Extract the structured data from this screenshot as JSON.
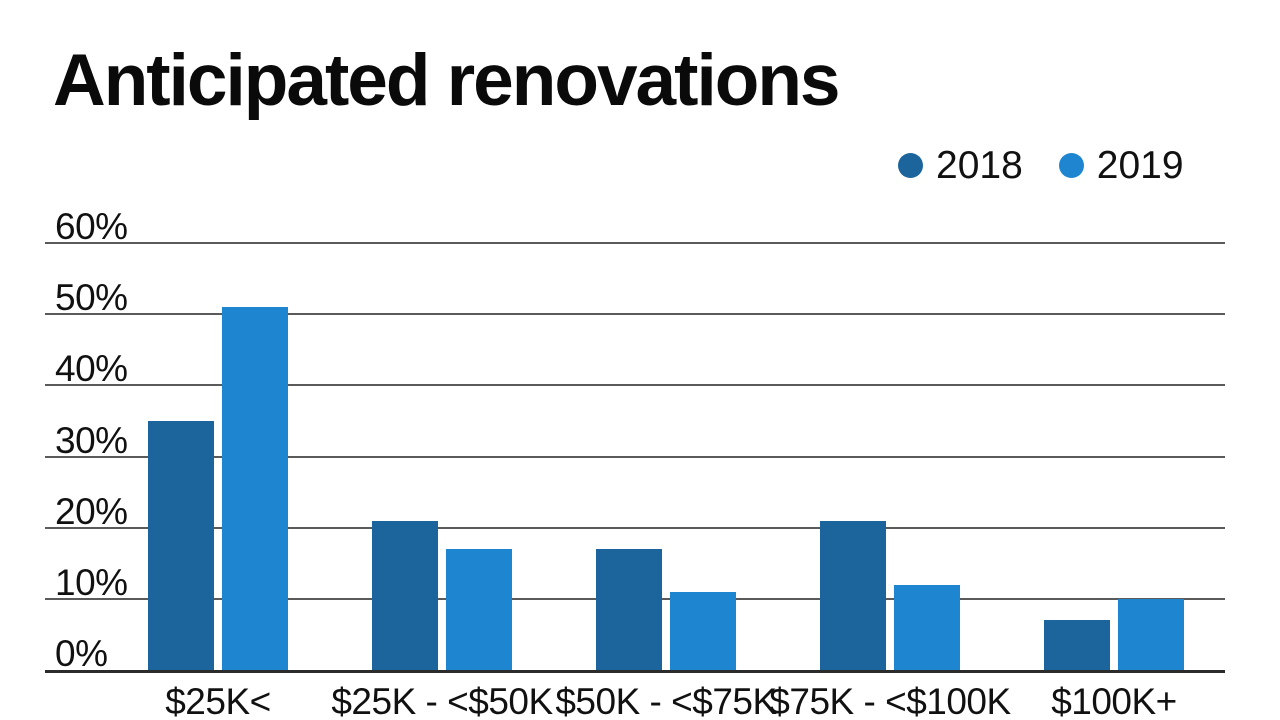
{
  "chart_data": {
    "type": "bar",
    "title": "Anticipated renovations",
    "categories": [
      "$25K<",
      "$25K - <$50K",
      "$50K - <$75K",
      "$75K - <$100K",
      "$100K+"
    ],
    "series": [
      {
        "name": "2018",
        "color": "#1c659c",
        "values": [
          35,
          21,
          17,
          21,
          7
        ]
      },
      {
        "name": "2019",
        "color": "#1e86d0",
        "values": [
          51,
          17,
          11,
          12,
          10
        ]
      }
    ],
    "value_suffix": "%",
    "y_axis": {
      "min": 0,
      "max": 60,
      "step": 10,
      "tick_labels": [
        "0%",
        "10%",
        "20%",
        "30%",
        "40%",
        "50%",
        "60%"
      ]
    },
    "grid": true,
    "legend": {
      "position": "top-right",
      "entries": [
        "2018",
        "2019"
      ]
    },
    "styles": {
      "background": "#ffffff",
      "grid_color": "#5a5a5a",
      "baseline_color": "#2b2b2b",
      "text_color": "#111111",
      "title_color": "#0a0a0a"
    }
  }
}
